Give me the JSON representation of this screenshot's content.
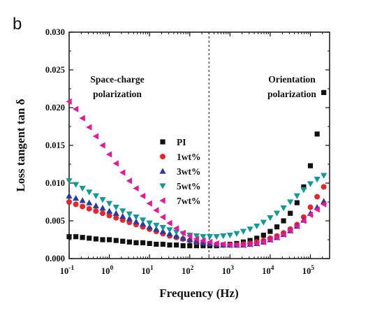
{
  "panel_label": "b",
  "chart_data": {
    "type": "scatter",
    "xlabel": "Frequency (Hz)",
    "ylabel": "Loss tangent tan δ",
    "x_scale": "log",
    "xlim": [
      0.1,
      300000
    ],
    "ylim": [
      0,
      0.03
    ],
    "x_ticks": [
      {
        "value": 0.1,
        "base": "10",
        "exp": "-1"
      },
      {
        "value": 1,
        "base": "10",
        "exp": "0"
      },
      {
        "value": 10,
        "base": "10",
        "exp": "1"
      },
      {
        "value": 100,
        "base": "10",
        "exp": "2"
      },
      {
        "value": 1000,
        "base": "10",
        "exp": "3"
      },
      {
        "value": 10000,
        "base": "10",
        "exp": "4"
      },
      {
        "value": 100000,
        "base": "10",
        "exp": "5"
      }
    ],
    "y_ticks": [
      {
        "value": 0,
        "label": "0.000"
      },
      {
        "value": 0.005,
        "label": "0.005"
      },
      {
        "value": 0.01,
        "label": "0.010"
      },
      {
        "value": 0.015,
        "label": "0.015"
      },
      {
        "value": 0.02,
        "label": "0.020"
      },
      {
        "value": 0.025,
        "label": "0.025"
      },
      {
        "value": 0.03,
        "label": "0.030"
      }
    ],
    "grid": false,
    "legend_position": "center-left",
    "annotations": [
      {
        "lines": [
          "Space-charge",
          "polarization"
        ],
        "position": "top-left"
      },
      {
        "lines": [
          "Orientation",
          "polarization"
        ],
        "position": "top-right"
      }
    ],
    "divider_x": 300,
    "x": [
      0.1,
      0.147,
      0.215,
      0.316,
      0.464,
      0.681,
      1,
      1.47,
      2.15,
      3.16,
      4.64,
      6.81,
      10,
      14.7,
      21.5,
      31.6,
      46.4,
      68.1,
      100,
      147,
      215,
      316,
      464,
      681,
      1000,
      1470,
      2150,
      3160,
      4640,
      6810,
      10000,
      14700,
      21500,
      31600,
      46400,
      68100,
      100000,
      147000,
      215000
    ],
    "series": [
      {
        "name": "PI",
        "marker": "square",
        "color": "#111111",
        "values": [
          0.0029,
          0.0029,
          0.0028,
          0.0027,
          0.0026,
          0.0025,
          0.0025,
          0.0024,
          0.0023,
          0.0022,
          0.0021,
          0.0021,
          0.002,
          0.0019,
          0.0019,
          0.0018,
          0.0018,
          0.0017,
          0.0017,
          0.0017,
          0.0017,
          0.0017,
          0.0017,
          0.0018,
          0.0019,
          0.002,
          0.0022,
          0.0024,
          0.0027,
          0.0031,
          0.0036,
          0.0042,
          0.005,
          0.006,
          0.0074,
          0.0095,
          0.0123,
          0.0165,
          0.022
        ]
      },
      {
        "name": "1wt%",
        "marker": "circle",
        "color": "#e8262a",
        "values": [
          0.0075,
          0.0072,
          0.0069,
          0.0066,
          0.0063,
          0.006,
          0.0057,
          0.0054,
          0.0051,
          0.0048,
          0.0045,
          0.0042,
          0.0039,
          0.0036,
          0.0033,
          0.003,
          0.0028,
          0.0026,
          0.0024,
          0.0022,
          0.0021,
          0.002,
          0.0019,
          0.0018,
          0.0018,
          0.0018,
          0.0019,
          0.002,
          0.0022,
          0.0024,
          0.0027,
          0.003,
          0.0034,
          0.0039,
          0.0045,
          0.0055,
          0.0068,
          0.0082,
          0.0095
        ]
      },
      {
        "name": "3wt%",
        "marker": "triangle-up",
        "color": "#2b3a9e",
        "values": [
          0.0083,
          0.008,
          0.0077,
          0.0074,
          0.007,
          0.0067,
          0.0063,
          0.006,
          0.0056,
          0.0053,
          0.0049,
          0.0046,
          0.0042,
          0.0039,
          0.0036,
          0.0033,
          0.003,
          0.0027,
          0.0025,
          0.0023,
          0.0021,
          0.002,
          0.0019,
          0.0018,
          0.0018,
          0.0018,
          0.0018,
          0.0019,
          0.002,
          0.0022,
          0.0025,
          0.0028,
          0.0032,
          0.0037,
          0.0043,
          0.0051,
          0.006,
          0.0068,
          0.0076
        ]
      },
      {
        "name": "5wt%",
        "marker": "triangle-down",
        "color": "#0f9a9a",
        "values": [
          0.0103,
          0.0098,
          0.0093,
          0.0088,
          0.0083,
          0.0078,
          0.0073,
          0.0068,
          0.0063,
          0.0059,
          0.0055,
          0.0051,
          0.0047,
          0.0044,
          0.0041,
          0.0038,
          0.0035,
          0.0033,
          0.0031,
          0.003,
          0.0029,
          0.0029,
          0.0029,
          0.003,
          0.0031,
          0.0033,
          0.0036,
          0.0039,
          0.0043,
          0.0048,
          0.0054,
          0.006,
          0.0067,
          0.0075,
          0.0083,
          0.0091,
          0.0099,
          0.0105,
          0.011
        ]
      },
      {
        "name": "7wt%",
        "marker": "triangle-left",
        "color": "#e8169a",
        "values": [
          0.0208,
          0.0198,
          0.0186,
          0.0174,
          0.0162,
          0.015,
          0.0138,
          0.0126,
          0.0114,
          0.0103,
          0.0093,
          0.0083,
          0.0073,
          0.0064,
          0.0055,
          0.0047,
          0.004,
          0.0034,
          0.003,
          0.0026,
          0.0024,
          0.0022,
          0.002,
          0.0019,
          0.0018,
          0.0018,
          0.0018,
          0.0019,
          0.002,
          0.0022,
          0.0025,
          0.0028,
          0.0032,
          0.0037,
          0.0043,
          0.005,
          0.0058,
          0.0065,
          0.0072
        ]
      }
    ]
  }
}
